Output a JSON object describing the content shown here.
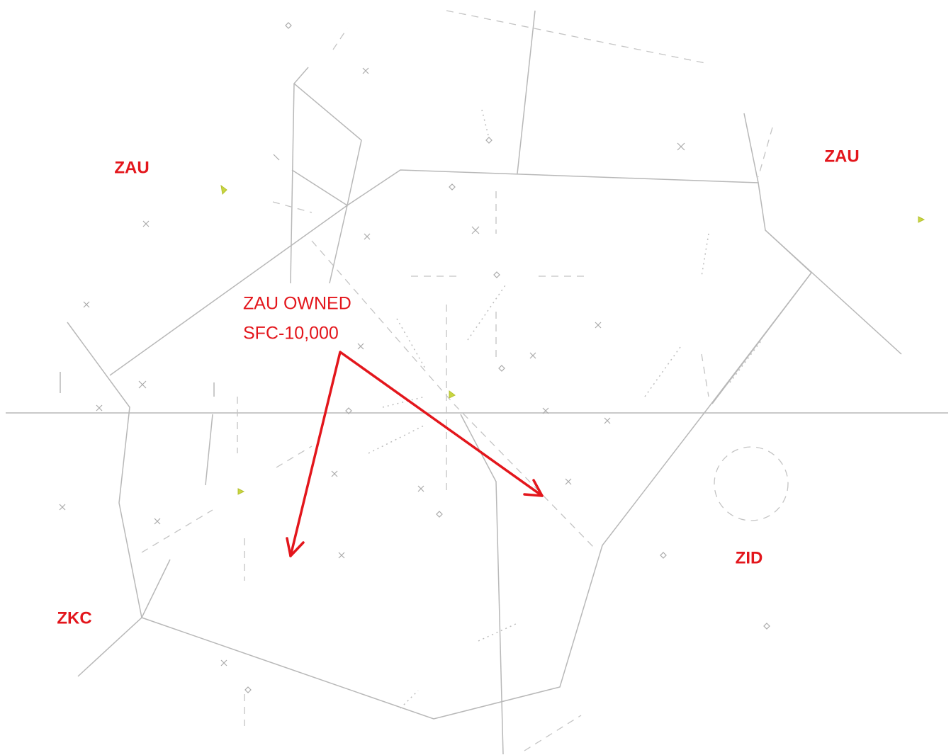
{
  "labels": [
    {
      "text": "ZAU"
    },
    {
      "text": "ZAU"
    },
    {
      "text": "ZKC"
    },
    {
      "text": "ZID"
    }
  ],
  "annotation": {
    "lines": [
      "ZAU OWNED",
      "SFC-10,000"
    ]
  }
}
